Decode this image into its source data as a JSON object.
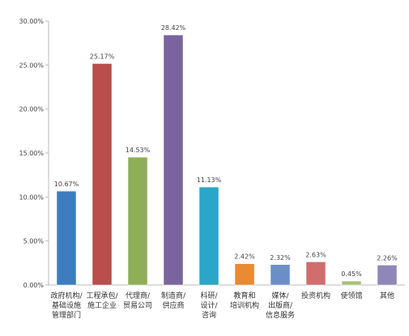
{
  "chart_data": {
    "type": "bar",
    "title": "",
    "xlabel": "",
    "ylabel": "",
    "ylim": [
      0,
      30
    ],
    "yticks": [
      "0.00%",
      "5.00%",
      "10.00%",
      "15.00%",
      "20.00%",
      "25.00%",
      "30.00%"
    ],
    "grid": false,
    "legend": "none",
    "categories": [
      [
        "政府机构/",
        "基础设施",
        "管理部门"
      ],
      [
        "工程承包/",
        "施工企业"
      ],
      [
        "代理商/",
        "贸易公司"
      ],
      [
        "制造商/",
        "供应商"
      ],
      [
        "科研/",
        "设计/",
        "咨询"
      ],
      [
        "教育和",
        "培训机构"
      ],
      [
        "媒体/",
        "出版商/",
        "信息服务"
      ],
      [
        "投资机构"
      ],
      [
        "使领馆"
      ],
      [
        "其他"
      ]
    ],
    "values": [
      10.67,
      25.17,
      14.53,
      28.42,
      11.13,
      2.42,
      2.32,
      2.63,
      0.45,
      2.26
    ],
    "value_labels": [
      "10.67%",
      "25.17%",
      "14.53%",
      "28.42%",
      "11.13%",
      "2.42%",
      "2.32%",
      "2.63%",
      "0.45%",
      "2.26%"
    ],
    "colors": [
      "#3d7dbf",
      "#b94e4c",
      "#8fae58",
      "#7a649e",
      "#2aa6c6",
      "#e98a35",
      "#6b8ec8",
      "#d06e6e",
      "#a9c07a",
      "#8f87b8"
    ]
  }
}
